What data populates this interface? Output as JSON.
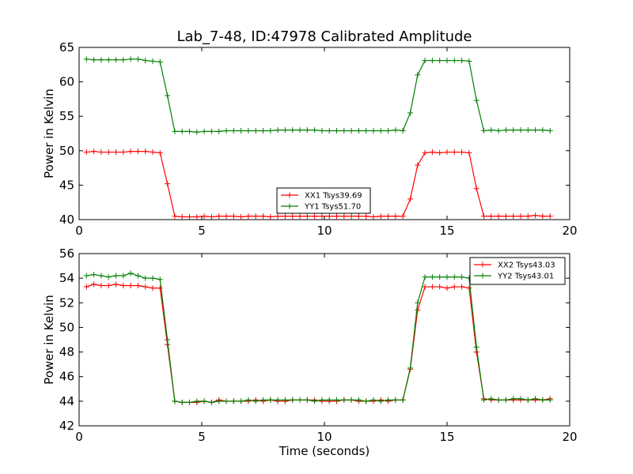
{
  "title": "Lab_7-48, ID:47978 Calibrated Amplitude",
  "chart_data": [
    {
      "type": "line",
      "ylabel": "Power in Kelvin",
      "xlabel": "",
      "xlim": [
        0,
        20
      ],
      "ylim": [
        40,
        65
      ],
      "xticks": [
        0,
        5,
        10,
        15,
        20
      ],
      "yticks": [
        40,
        45,
        50,
        55,
        60,
        65
      ],
      "grid": false,
      "legend_position": "bottom-center",
      "series": [
        {
          "name": "XX1 Tsys39.69",
          "color": "#ff0000",
          "x": [
            0.3,
            0.6,
            0.9,
            1.2,
            1.5,
            1.8,
            2.1,
            2.4,
            2.7,
            3.0,
            3.3,
            3.6,
            3.9,
            4.2,
            4.5,
            4.8,
            5.1,
            5.4,
            5.7,
            6.0,
            6.3,
            6.6,
            6.9,
            7.2,
            7.5,
            7.8,
            8.1,
            8.4,
            8.7,
            9.0,
            9.3,
            9.6,
            9.9,
            10.2,
            10.5,
            10.8,
            11.1,
            11.4,
            11.7,
            12.0,
            12.3,
            12.6,
            12.9,
            13.2,
            13.5,
            13.8,
            14.1,
            14.4,
            14.7,
            15.0,
            15.3,
            15.6,
            15.9,
            16.2,
            16.5,
            16.8,
            17.1,
            17.4,
            17.7,
            18.0,
            18.3,
            18.6,
            18.9,
            19.2
          ],
          "y": [
            49.8,
            49.9,
            49.8,
            49.8,
            49.8,
            49.8,
            49.9,
            49.9,
            49.9,
            49.8,
            49.7,
            45.2,
            40.5,
            40.4,
            40.4,
            40.4,
            40.5,
            40.4,
            40.5,
            40.5,
            40.5,
            40.4,
            40.5,
            40.5,
            40.5,
            40.4,
            40.5,
            40.5,
            40.5,
            40.5,
            40.5,
            40.5,
            40.5,
            40.5,
            40.5,
            40.5,
            40.5,
            40.5,
            40.5,
            40.4,
            40.5,
            40.5,
            40.5,
            40.5,
            43.0,
            47.9,
            49.7,
            49.8,
            49.7,
            49.8,
            49.8,
            49.8,
            49.7,
            44.5,
            40.5,
            40.5,
            40.5,
            40.5,
            40.5,
            40.5,
            40.5,
            40.6,
            40.5,
            40.5
          ]
        },
        {
          "name": "YY1 Tsys51.70",
          "color": "#008000",
          "x": [
            0.3,
            0.6,
            0.9,
            1.2,
            1.5,
            1.8,
            2.1,
            2.4,
            2.7,
            3.0,
            3.3,
            3.6,
            3.9,
            4.2,
            4.5,
            4.8,
            5.1,
            5.4,
            5.7,
            6.0,
            6.3,
            6.6,
            6.9,
            7.2,
            7.5,
            7.8,
            8.1,
            8.4,
            8.7,
            9.0,
            9.3,
            9.6,
            9.9,
            10.2,
            10.5,
            10.8,
            11.1,
            11.4,
            11.7,
            12.0,
            12.3,
            12.6,
            12.9,
            13.2,
            13.5,
            13.8,
            14.1,
            14.4,
            14.7,
            15.0,
            15.3,
            15.6,
            15.9,
            16.2,
            16.5,
            16.8,
            17.1,
            17.4,
            17.7,
            18.0,
            18.3,
            18.6,
            18.9,
            19.2
          ],
          "y": [
            63.3,
            63.2,
            63.2,
            63.2,
            63.2,
            63.2,
            63.3,
            63.3,
            63.1,
            63.0,
            62.9,
            58.0,
            52.8,
            52.8,
            52.8,
            52.7,
            52.8,
            52.8,
            52.8,
            52.9,
            52.9,
            52.9,
            52.9,
            52.9,
            52.9,
            52.9,
            53.0,
            53.0,
            53.0,
            53.0,
            53.0,
            53.0,
            52.9,
            52.9,
            52.9,
            52.9,
            52.9,
            52.9,
            52.9,
            52.9,
            52.9,
            52.9,
            53.0,
            52.9,
            55.5,
            61.0,
            63.1,
            63.1,
            63.1,
            63.1,
            63.1,
            63.1,
            63.0,
            57.3,
            52.9,
            53.0,
            52.9,
            53.0,
            53.0,
            53.0,
            53.0,
            53.0,
            53.0,
            52.9
          ]
        }
      ]
    },
    {
      "type": "line",
      "ylabel": "Power in Kelvin",
      "xlabel": "Time (seconds)",
      "xlim": [
        0,
        20
      ],
      "ylim": [
        42,
        56
      ],
      "xticks": [
        0,
        5,
        10,
        15,
        20
      ],
      "yticks": [
        42,
        44,
        46,
        48,
        50,
        52,
        54,
        56
      ],
      "grid": false,
      "legend_position": "top-right",
      "series": [
        {
          "name": "XX2 Tsys43.03",
          "color": "#ff0000",
          "x": [
            0.3,
            0.6,
            0.9,
            1.2,
            1.5,
            1.8,
            2.1,
            2.4,
            2.7,
            3.0,
            3.3,
            3.6,
            3.9,
            4.2,
            4.5,
            4.8,
            5.1,
            5.4,
            5.7,
            6.0,
            6.3,
            6.6,
            6.9,
            7.2,
            7.5,
            7.8,
            8.1,
            8.4,
            8.7,
            9.0,
            9.3,
            9.6,
            9.9,
            10.2,
            10.5,
            10.8,
            11.1,
            11.4,
            11.7,
            12.0,
            12.3,
            12.6,
            12.9,
            13.2,
            13.5,
            13.8,
            14.1,
            14.4,
            14.7,
            15.0,
            15.3,
            15.6,
            15.9,
            16.2,
            16.5,
            16.8,
            17.1,
            17.4,
            17.7,
            18.0,
            18.3,
            18.6,
            18.9,
            19.2
          ],
          "y": [
            53.3,
            53.5,
            53.4,
            53.4,
            53.5,
            53.4,
            53.4,
            53.4,
            53.3,
            53.2,
            53.2,
            48.6,
            44.0,
            43.9,
            43.9,
            43.9,
            44.0,
            43.9,
            44.1,
            44.0,
            44.0,
            44.0,
            44.0,
            44.1,
            44.0,
            44.1,
            44.0,
            44.0,
            44.1,
            44.1,
            44.1,
            44.1,
            44.0,
            44.0,
            44.0,
            44.1,
            44.1,
            44.0,
            44.0,
            44.0,
            44.1,
            44.0,
            44.1,
            44.1,
            46.6,
            51.4,
            53.3,
            53.3,
            53.3,
            53.2,
            53.3,
            53.3,
            53.2,
            48.0,
            44.2,
            44.1,
            44.1,
            44.1,
            44.1,
            44.1,
            44.1,
            44.1,
            44.1,
            44.2
          ]
        },
        {
          "name": "YY2 Tsys43.01",
          "color": "#008000",
          "x": [
            0.3,
            0.6,
            0.9,
            1.2,
            1.5,
            1.8,
            2.1,
            2.4,
            2.7,
            3.0,
            3.3,
            3.6,
            3.9,
            4.2,
            4.5,
            4.8,
            5.1,
            5.4,
            5.7,
            6.0,
            6.3,
            6.6,
            6.9,
            7.2,
            7.5,
            7.8,
            8.1,
            8.4,
            8.7,
            9.0,
            9.3,
            9.6,
            9.9,
            10.2,
            10.5,
            10.8,
            11.1,
            11.4,
            11.7,
            12.0,
            12.3,
            12.6,
            12.9,
            13.2,
            13.5,
            13.8,
            14.1,
            14.4,
            14.7,
            15.0,
            15.3,
            15.6,
            15.9,
            16.2,
            16.5,
            16.8,
            17.1,
            17.4,
            17.7,
            18.0,
            18.3,
            18.6,
            18.9,
            19.2
          ],
          "y": [
            54.2,
            54.3,
            54.2,
            54.1,
            54.2,
            54.2,
            54.4,
            54.2,
            54.0,
            54.0,
            53.9,
            49.0,
            44.0,
            43.9,
            43.9,
            44.0,
            44.0,
            43.9,
            44.0,
            44.0,
            44.0,
            44.0,
            44.1,
            44.0,
            44.1,
            44.1,
            44.1,
            44.1,
            44.1,
            44.1,
            44.1,
            44.0,
            44.1,
            44.1,
            44.1,
            44.1,
            44.1,
            44.1,
            44.0,
            44.1,
            44.0,
            44.1,
            44.1,
            44.1,
            46.7,
            52.0,
            54.1,
            54.1,
            54.1,
            54.1,
            54.1,
            54.1,
            54.0,
            48.4,
            44.1,
            44.2,
            44.1,
            44.1,
            44.2,
            44.2,
            44.1,
            44.2,
            44.1,
            44.1
          ]
        }
      ]
    }
  ]
}
